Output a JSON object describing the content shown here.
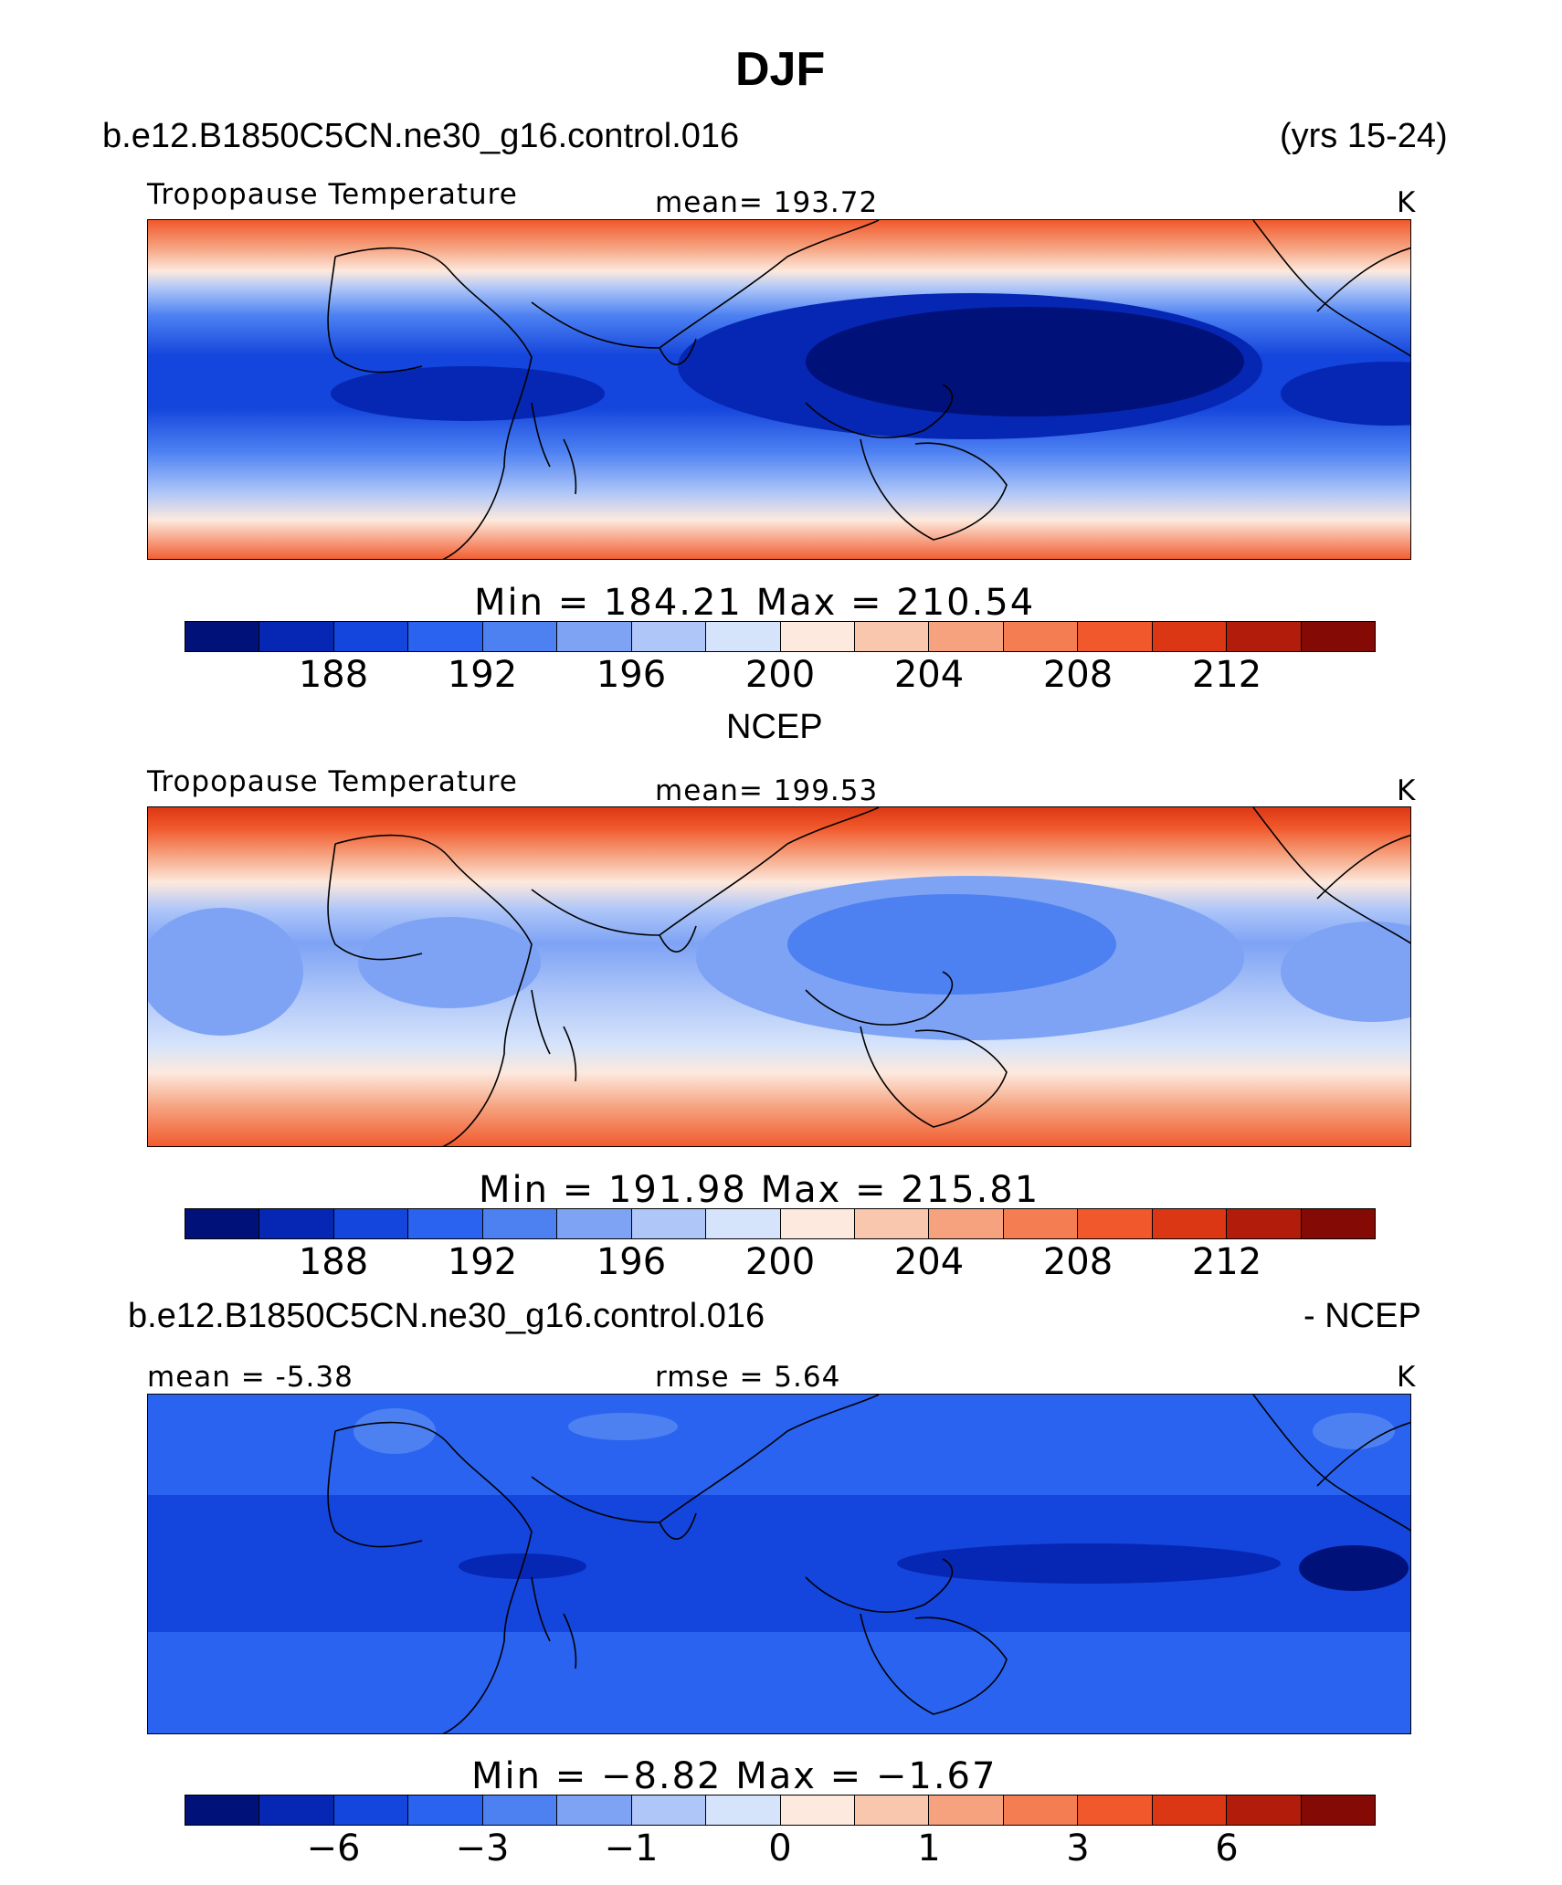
{
  "title": "DJF",
  "model_case": "b.e12.B1850C5CN.ne30_g16.control.016",
  "years": "(yrs 15-24)",
  "panels": [
    {
      "subtitle": "",
      "variable": "Tropopause Temperature",
      "stat_text": "mean= 193.72",
      "units": "K",
      "minmax": "Min = 184.21 Max = 210.54"
    },
    {
      "subtitle": "NCEP",
      "variable": "Tropopause Temperature",
      "stat_text": "mean= 199.53",
      "units": "K",
      "minmax": "Min = 191.98 Max = 215.81"
    },
    {
      "subtitle_left": "b.e12.B1850C5CN.ne30_g16.control.016",
      "subtitle_right": "- NCEP",
      "mean_text": "mean = -5.38",
      "rmse_text": "rmse = 5.64",
      "units": "K",
      "minmax": "Min = −8.82 Max = −1.67"
    }
  ],
  "colorbar_colors": [
    "#00117a",
    "#0527b3",
    "#1445dc",
    "#2a63f0",
    "#4d81f2",
    "#7ea3f5",
    "#aec6f8",
    "#d6e4fb",
    "#fde9dd",
    "#f9c7ad",
    "#f6a27f",
    "#f47d52",
    "#f1582b",
    "#dc3714",
    "#b21d0b",
    "#840a05"
  ],
  "colorbar_ticks_abs": [
    "188",
    "192",
    "196",
    "200",
    "204",
    "208",
    "212"
  ],
  "colorbar_ticks_diff": [
    "−6",
    "−3",
    "−1",
    "0",
    "1",
    "3",
    "6"
  ]
}
